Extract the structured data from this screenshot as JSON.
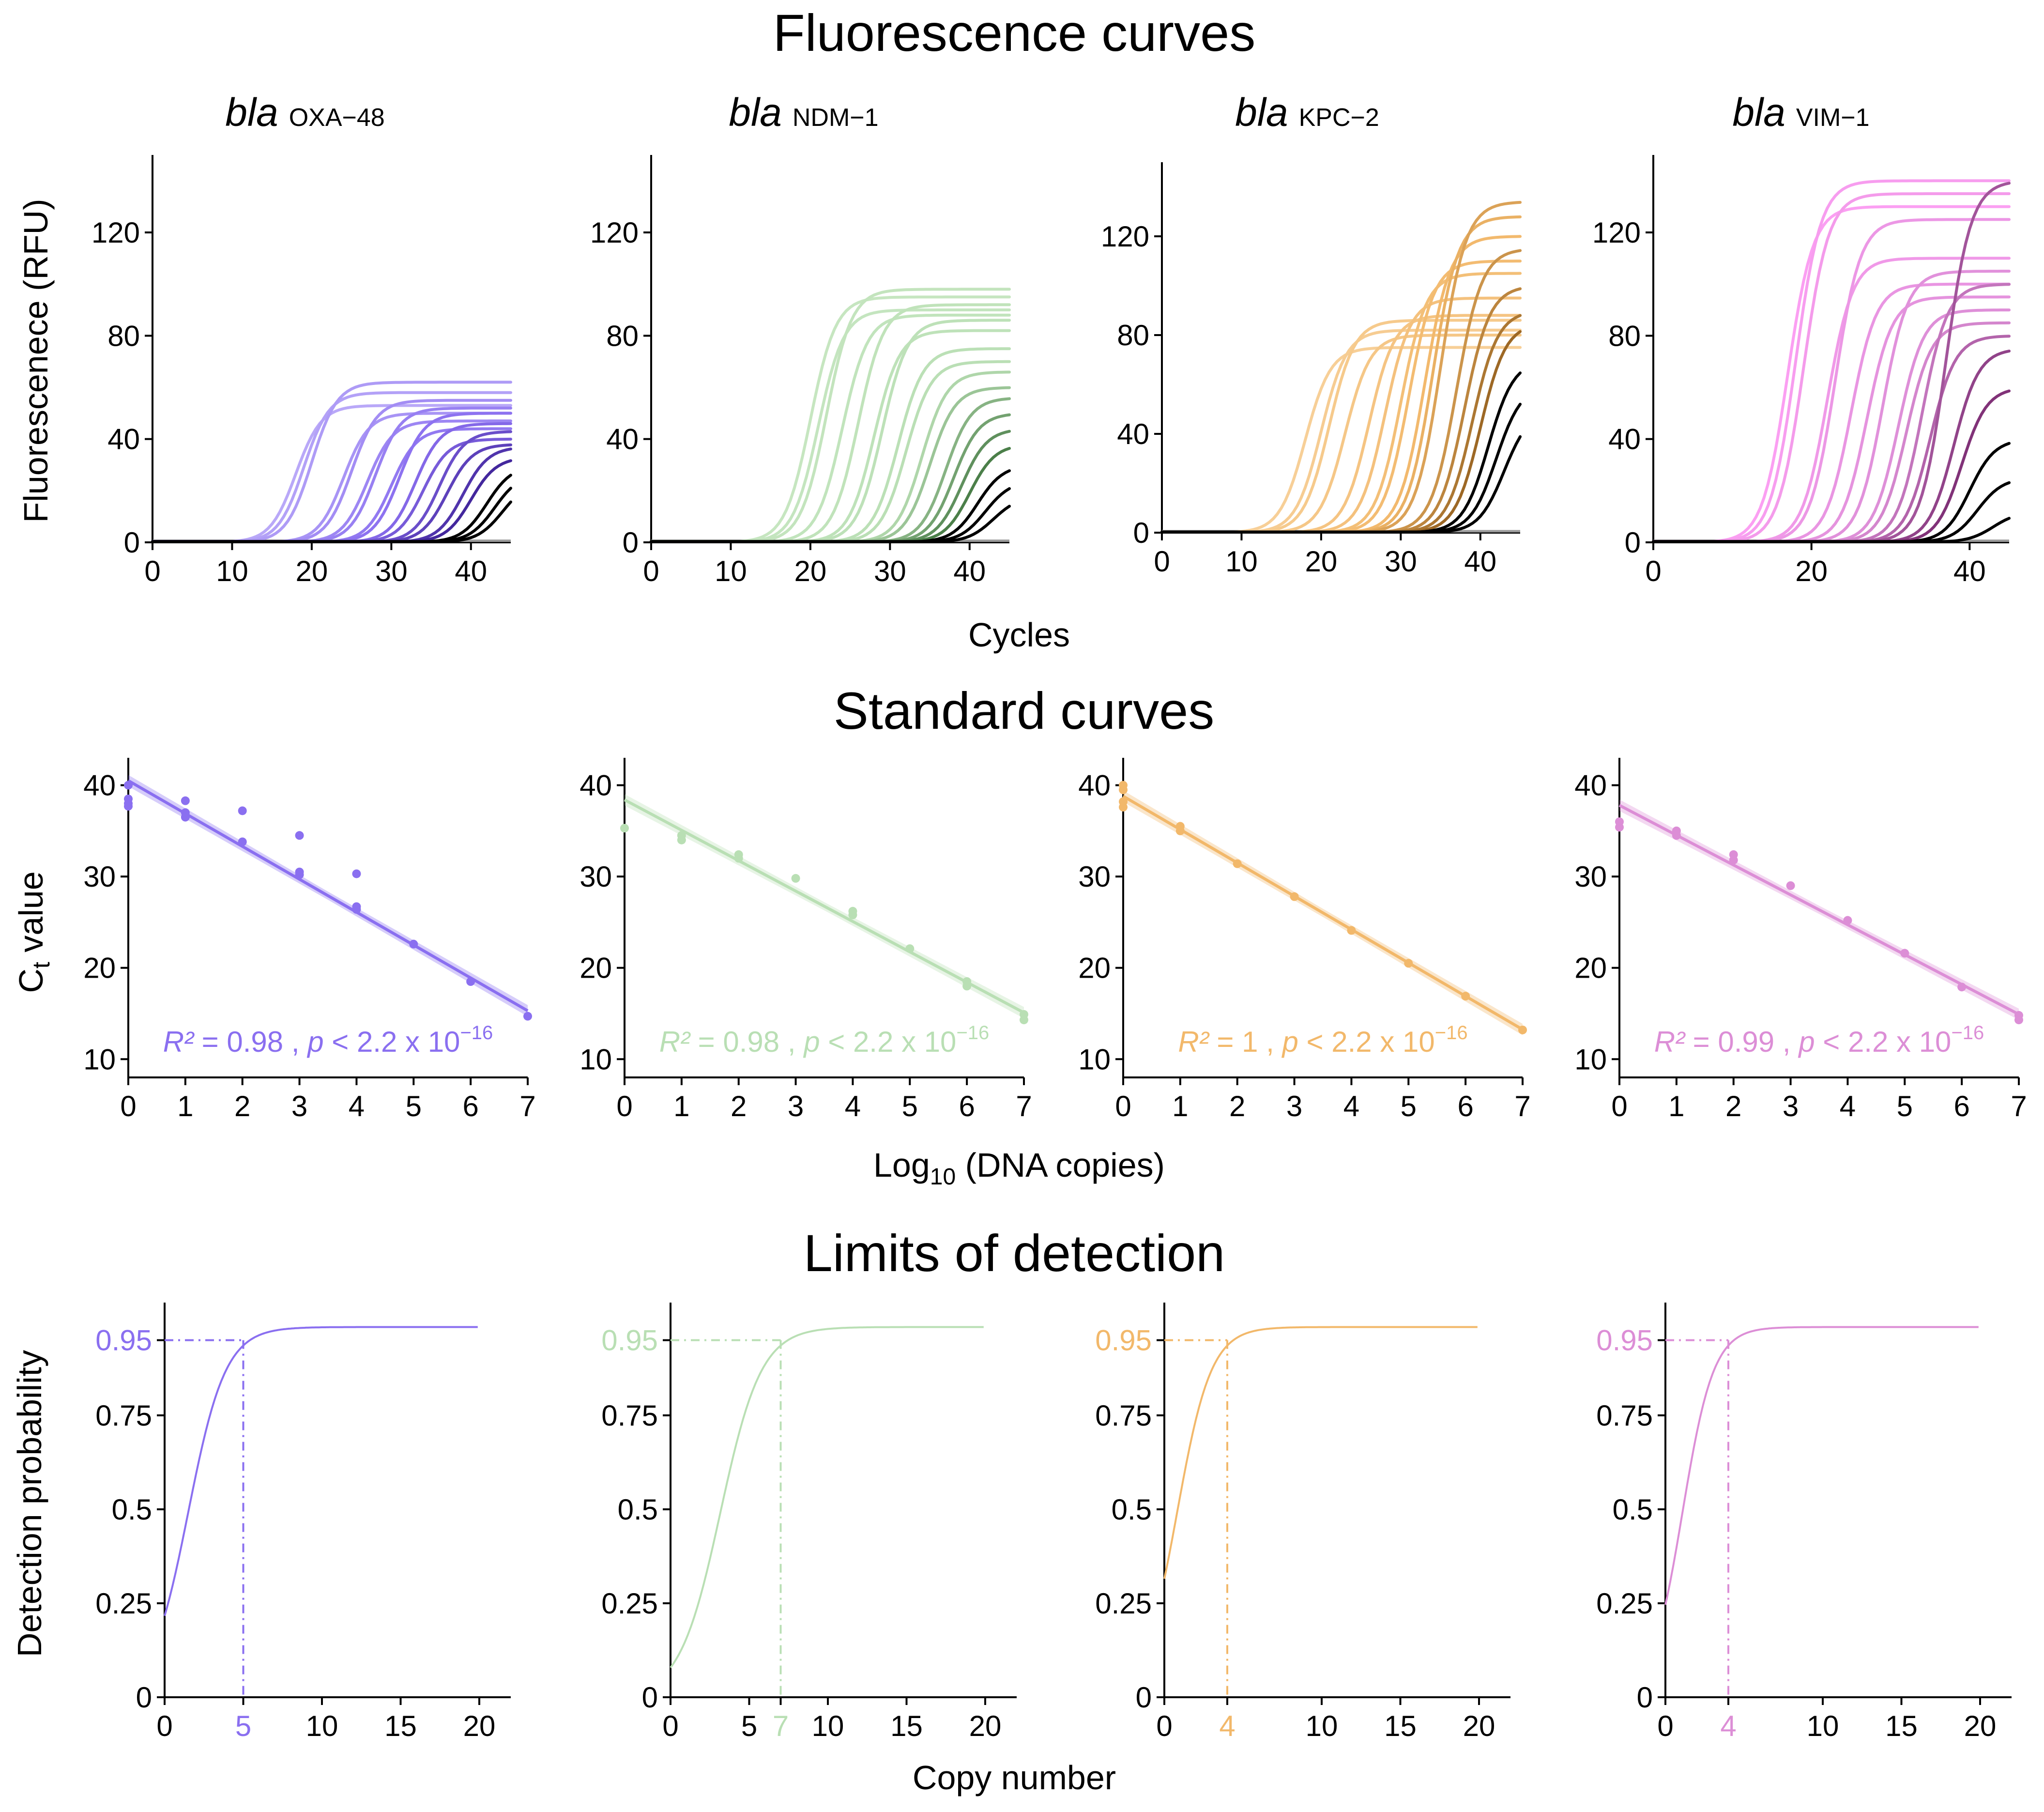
{
  "sections": {
    "fluorescence": {
      "title": "Fluorescence curves",
      "xlabel": "Cycles",
      "ylabel": "Fluorescenece (RFU)"
    },
    "standard": {
      "title": "Standard curves",
      "xlabel_main": "Log",
      "xlabel_sub": "10",
      "xlabel_rest": " (DNA copies)",
      "ylabel_main": "C",
      "ylabel_sub": "t",
      "ylabel_rest": " value"
    },
    "lod": {
      "title": "Limits of detection",
      "xlabel": "Copy number",
      "ylabel": "Detection probability"
    }
  },
  "panels": [
    {
      "gene_italic": "bla",
      "gene_sub": "OXA−48",
      "color": "#8a6ff0",
      "line_dark": "#1c0070",
      "line_light": "#b9a8f8"
    },
    {
      "gene_italic": "bla",
      "gene_sub": "NDM−1",
      "color": "#b9dfb4",
      "line_dark": "#0f4a0f",
      "line_light": "#c6e6c0"
    },
    {
      "gene_italic": "bla",
      "gene_sub": "KPC−2",
      "color": "#f2b86a",
      "line_dark": "#6e3d00",
      "line_light": "#f7cf97"
    },
    {
      "gene_italic": "bla",
      "gene_sub": "VIM−1",
      "color": "#dc8ed6",
      "line_dark": "#4f0045",
      "line_light": "#fb9ff2"
    }
  ],
  "chart_data": [
    {
      "id": "fluorescence-oxa48",
      "type": "line",
      "title": "bla OXA−48",
      "xlabel": "Cycles",
      "ylabel": "Fluorescenece (RFU)",
      "xlim": [
        0,
        45
      ],
      "ylim": [
        0,
        150
      ],
      "xticks": [
        0,
        10,
        20,
        30,
        40
      ],
      "yticks": [
        0,
        40,
        80,
        120
      ],
      "series": [
        {
          "ct": 18,
          "plateau": 53
        },
        {
          "ct": 19,
          "plateau": 58
        },
        {
          "ct": 20,
          "plateau": 62
        },
        {
          "ct": 24,
          "plateau": 50
        },
        {
          "ct": 25,
          "plateau": 55
        },
        {
          "ct": 27,
          "plateau": 47
        },
        {
          "ct": 28,
          "plateau": 52
        },
        {
          "ct": 30,
          "plateau": 44
        },
        {
          "ct": 31,
          "plateau": 50
        },
        {
          "ct": 33,
          "plateau": 46
        },
        {
          "ct": 34,
          "plateau": 40
        },
        {
          "ct": 36,
          "plateau": 43
        },
        {
          "ct": 37,
          "plateau": 38
        },
        {
          "ct": 39,
          "plateau": 37
        },
        {
          "ct": 40,
          "plateau": 33
        },
        {
          "ct": 42,
          "plateau": 30
        },
        {
          "ct": 43,
          "plateau": 27
        },
        {
          "ct": 44,
          "plateau": 24
        }
      ]
    },
    {
      "id": "fluorescence-ndm1",
      "type": "line",
      "title": "bla NDM−1",
      "xlabel": "Cycles",
      "ylabel": "",
      "xlim": [
        0,
        45
      ],
      "ylim": [
        0,
        150
      ],
      "xticks": [
        0,
        10,
        20,
        30,
        40
      ],
      "yticks": [
        0,
        40,
        80,
        120
      ],
      "series": [
        {
          "ct": 20,
          "plateau": 95
        },
        {
          "ct": 21,
          "plateau": 90
        },
        {
          "ct": 22,
          "plateau": 98
        },
        {
          "ct": 24,
          "plateau": 88
        },
        {
          "ct": 26,
          "plateau": 92
        },
        {
          "ct": 28,
          "plateau": 82
        },
        {
          "ct": 29,
          "plateau": 86
        },
        {
          "ct": 31,
          "plateau": 75
        },
        {
          "ct": 32,
          "plateau": 70
        },
        {
          "ct": 34,
          "plateau": 66
        },
        {
          "ct": 35,
          "plateau": 60
        },
        {
          "ct": 37,
          "plateau": 56
        },
        {
          "ct": 38,
          "plateau": 50
        },
        {
          "ct": 39,
          "plateau": 44
        },
        {
          "ct": 40,
          "plateau": 38
        },
        {
          "ct": 41,
          "plateau": 30
        },
        {
          "ct": 42,
          "plateau": 24
        },
        {
          "ct": 43,
          "plateau": 18
        }
      ]
    },
    {
      "id": "fluorescence-kpc2",
      "type": "line",
      "title": "bla KPC−2",
      "xlabel": "Cycles",
      "ylabel": "",
      "xlim": [
        0,
        45
      ],
      "ylim": [
        0,
        150
      ],
      "xticks": [
        0,
        10,
        20,
        30,
        40
      ],
      "yticks": [
        0,
        40,
        80,
        120
      ],
      "series": [
        {
          "ct": 18,
          "plateau": 75
        },
        {
          "ct": 20,
          "plateau": 82
        },
        {
          "ct": 21,
          "plateau": 86
        },
        {
          "ct": 23,
          "plateau": 80
        },
        {
          "ct": 26,
          "plateau": 88
        },
        {
          "ct": 28,
          "plateau": 95
        },
        {
          "ct": 30,
          "plateau": 105
        },
        {
          "ct": 31,
          "plateau": 110
        },
        {
          "ct": 33,
          "plateau": 120
        },
        {
          "ct": 34,
          "plateau": 128
        },
        {
          "ct": 35,
          "plateau": 134
        },
        {
          "ct": 37,
          "plateau": 115
        },
        {
          "ct": 38,
          "plateau": 100
        },
        {
          "ct": 39,
          "plateau": 90
        },
        {
          "ct": 40,
          "plateau": 85
        },
        {
          "ct": 41,
          "plateau": 70
        },
        {
          "ct": 42,
          "plateau": 60
        },
        {
          "ct": 43,
          "plateau": 50
        }
      ]
    },
    {
      "id": "fluorescence-vim1",
      "type": "line",
      "title": "bla VIM−1",
      "xlabel": "Cycles",
      "ylabel": "",
      "xlim": [
        0,
        45
      ],
      "ylim": [
        0,
        150
      ],
      "xticks": [
        0,
        20,
        40
      ],
      "yticks": [
        0,
        40,
        80,
        120
      ],
      "series": [
        {
          "ct": 17,
          "plateau": 130
        },
        {
          "ct": 18,
          "plateau": 140
        },
        {
          "ct": 19,
          "plateau": 135
        },
        {
          "ct": 22,
          "plateau": 110
        },
        {
          "ct": 23,
          "plateau": 125
        },
        {
          "ct": 25,
          "plateau": 100
        },
        {
          "ct": 27,
          "plateau": 95
        },
        {
          "ct": 29,
          "plateau": 105
        },
        {
          "ct": 31,
          "plateau": 90
        },
        {
          "ct": 32,
          "plateau": 85
        },
        {
          "ct": 34,
          "plateau": 100
        },
        {
          "ct": 35,
          "plateau": 80
        },
        {
          "ct": 37,
          "plateau": 140
        },
        {
          "ct": 38,
          "plateau": 75
        },
        {
          "ct": 39,
          "plateau": 60
        },
        {
          "ct": 40,
          "plateau": 40
        },
        {
          "ct": 41,
          "plateau": 25
        },
        {
          "ct": 43,
          "plateau": 12
        }
      ]
    },
    {
      "id": "standard-oxa48",
      "type": "scatter",
      "xlabel": "Log10 (DNA copies)",
      "ylabel": "Ct value",
      "xlim": [
        0,
        7
      ],
      "ylim": [
        8,
        43
      ],
      "xticks": [
        0,
        1,
        2,
        3,
        4,
        5,
        6,
        7
      ],
      "yticks": [
        10,
        20,
        30,
        40
      ],
      "fit": {
        "intercept": 40.5,
        "slope": -3.6
      },
      "x": [
        0,
        0,
        0,
        0,
        1,
        1,
        1,
        2,
        2,
        3,
        3,
        3,
        4,
        4,
        4,
        5,
        6,
        7
      ],
      "y": [
        40.0,
        38.5,
        38.0,
        37.7,
        38.3,
        37.0,
        36.5,
        37.2,
        33.8,
        34.5,
        30.5,
        30.2,
        30.3,
        26.7,
        26.4,
        22.6,
        18.5,
        14.7
      ],
      "r2_label": "R²",
      "r2_value": " = 0.98 , ",
      "p_label": "p",
      "p_value": " < 2.2 x 10",
      "p_exp": "−16"
    },
    {
      "id": "standard-ndm1",
      "type": "scatter",
      "xlabel": "Log10 (DNA copies)",
      "ylabel": "",
      "xlim": [
        0,
        7
      ],
      "ylim": [
        8,
        43
      ],
      "xticks": [
        0,
        1,
        2,
        3,
        4,
        5,
        6,
        7
      ],
      "yticks": [
        10,
        20,
        30,
        40
      ],
      "fit": {
        "intercept": 38.4,
        "slope": -3.33
      },
      "x": [
        0,
        1,
        1,
        2,
        2,
        3,
        4,
        4,
        5,
        6,
        6,
        7,
        7
      ],
      "y": [
        35.3,
        34.5,
        34.0,
        32.4,
        32.0,
        29.8,
        26.2,
        25.8,
        22.1,
        18.5,
        18.0,
        14.9,
        14.3
      ],
      "r2_label": "R²",
      "r2_value": " = 0.98 , ",
      "p_label": "p",
      "p_value": " < 2.2 x 10",
      "p_exp": "−16"
    },
    {
      "id": "standard-kpc2",
      "type": "scatter",
      "xlabel": "Log10 (DNA copies)",
      "ylabel": "",
      "xlim": [
        0,
        7
      ],
      "ylim": [
        8,
        43
      ],
      "xticks": [
        0,
        1,
        2,
        3,
        4,
        5,
        6,
        7
      ],
      "yticks": [
        10,
        20,
        30,
        40
      ],
      "fit": {
        "intercept": 38.8,
        "slope": -3.65
      },
      "x": [
        0,
        0,
        0,
        0,
        1,
        1,
        2,
        3,
        4,
        5,
        6,
        7
      ],
      "y": [
        40.0,
        39.5,
        38.2,
        37.6,
        35.5,
        35.0,
        31.4,
        27.8,
        24.1,
        20.5,
        16.9,
        13.2
      ],
      "r2_label": "R²",
      "r2_value": " = 1 , ",
      "p_label": "p",
      "p_value": " < 2.2 x 10",
      "p_exp": "−16"
    },
    {
      "id": "standard-vim1",
      "type": "scatter",
      "xlabel": "Log10 (DNA copies)",
      "ylabel": "",
      "xlim": [
        0,
        7
      ],
      "ylim": [
        8,
        43
      ],
      "xticks": [
        0,
        1,
        2,
        3,
        4,
        5,
        6,
        7
      ],
      "yticks": [
        10,
        20,
        30,
        40
      ],
      "fit": {
        "intercept": 37.8,
        "slope": -3.27
      },
      "x": [
        0,
        0,
        1,
        1,
        2,
        2,
        3,
        4,
        5,
        6,
        7,
        7
      ],
      "y": [
        36.0,
        35.4,
        35.0,
        34.5,
        32.4,
        31.8,
        29.0,
        25.2,
        21.6,
        17.9,
        14.8,
        14.3
      ],
      "r2_label": "R²",
      "r2_value": " = 0.99 , ",
      "p_label": "p",
      "p_value": " < 2.2 x 10",
      "p_exp": "−16"
    },
    {
      "id": "lod-oxa48",
      "type": "line",
      "xlabel": "Copy number",
      "ylabel": "Detection probability",
      "xlim": [
        0,
        22
      ],
      "ylim": [
        0,
        1.05
      ],
      "xticks": [
        0,
        10,
        15,
        20
      ],
      "yticks": [
        0,
        0.25,
        0.5,
        0.75
      ],
      "ytick_labels": [
        "0",
        "0.25",
        "0.5",
        "0.75"
      ],
      "threshold": 0.95,
      "threshold_label": "0.95",
      "lod": 5,
      "lod_label": "5",
      "curve": {
        "p0": 0.22,
        "midpoint": 1.9
      }
    },
    {
      "id": "lod-ndm1",
      "type": "line",
      "xlabel": "Copy number",
      "ylabel": "",
      "xlim": [
        0,
        22
      ],
      "ylim": [
        0,
        1.05
      ],
      "xticks": [
        0,
        5,
        10,
        15,
        20
      ],
      "yticks": [
        0,
        0.25,
        0.5,
        0.75
      ],
      "ytick_labels": [
        "0",
        "0.25",
        "0.5",
        "0.75"
      ],
      "threshold": 0.95,
      "threshold_label": "0.95",
      "lod": 7,
      "lod_label": "7",
      "curve": {
        "p0": 0.08,
        "midpoint": 3.5
      }
    },
    {
      "id": "lod-kpc2",
      "type": "line",
      "xlabel": "Copy number",
      "ylabel": "",
      "xlim": [
        0,
        22
      ],
      "ylim": [
        0,
        1.05
      ],
      "xticks": [
        0,
        10,
        15,
        20
      ],
      "yticks": [
        0,
        0.25,
        0.5,
        0.75
      ],
      "ytick_labels": [
        "0",
        "0.25",
        "0.5",
        "0.75"
      ],
      "threshold": 0.95,
      "threshold_label": "0.95",
      "lod": 4,
      "lod_label": "4",
      "curve": {
        "p0": 0.32,
        "midpoint": 1.0
      }
    },
    {
      "id": "lod-vim1",
      "type": "line",
      "xlabel": "Copy number",
      "ylabel": "",
      "xlim": [
        0,
        22
      ],
      "ylim": [
        0,
        1.05
      ],
      "xticks": [
        0,
        10,
        15,
        20
      ],
      "yticks": [
        0,
        0.25,
        0.5,
        0.75
      ],
      "ytick_labels": [
        "0",
        "0.25",
        "0.5",
        "0.75"
      ],
      "threshold": 0.95,
      "threshold_label": "0.95",
      "lod": 4,
      "lod_label": "4",
      "curve": {
        "p0": 0.25,
        "midpoint": 1.2
      }
    }
  ]
}
